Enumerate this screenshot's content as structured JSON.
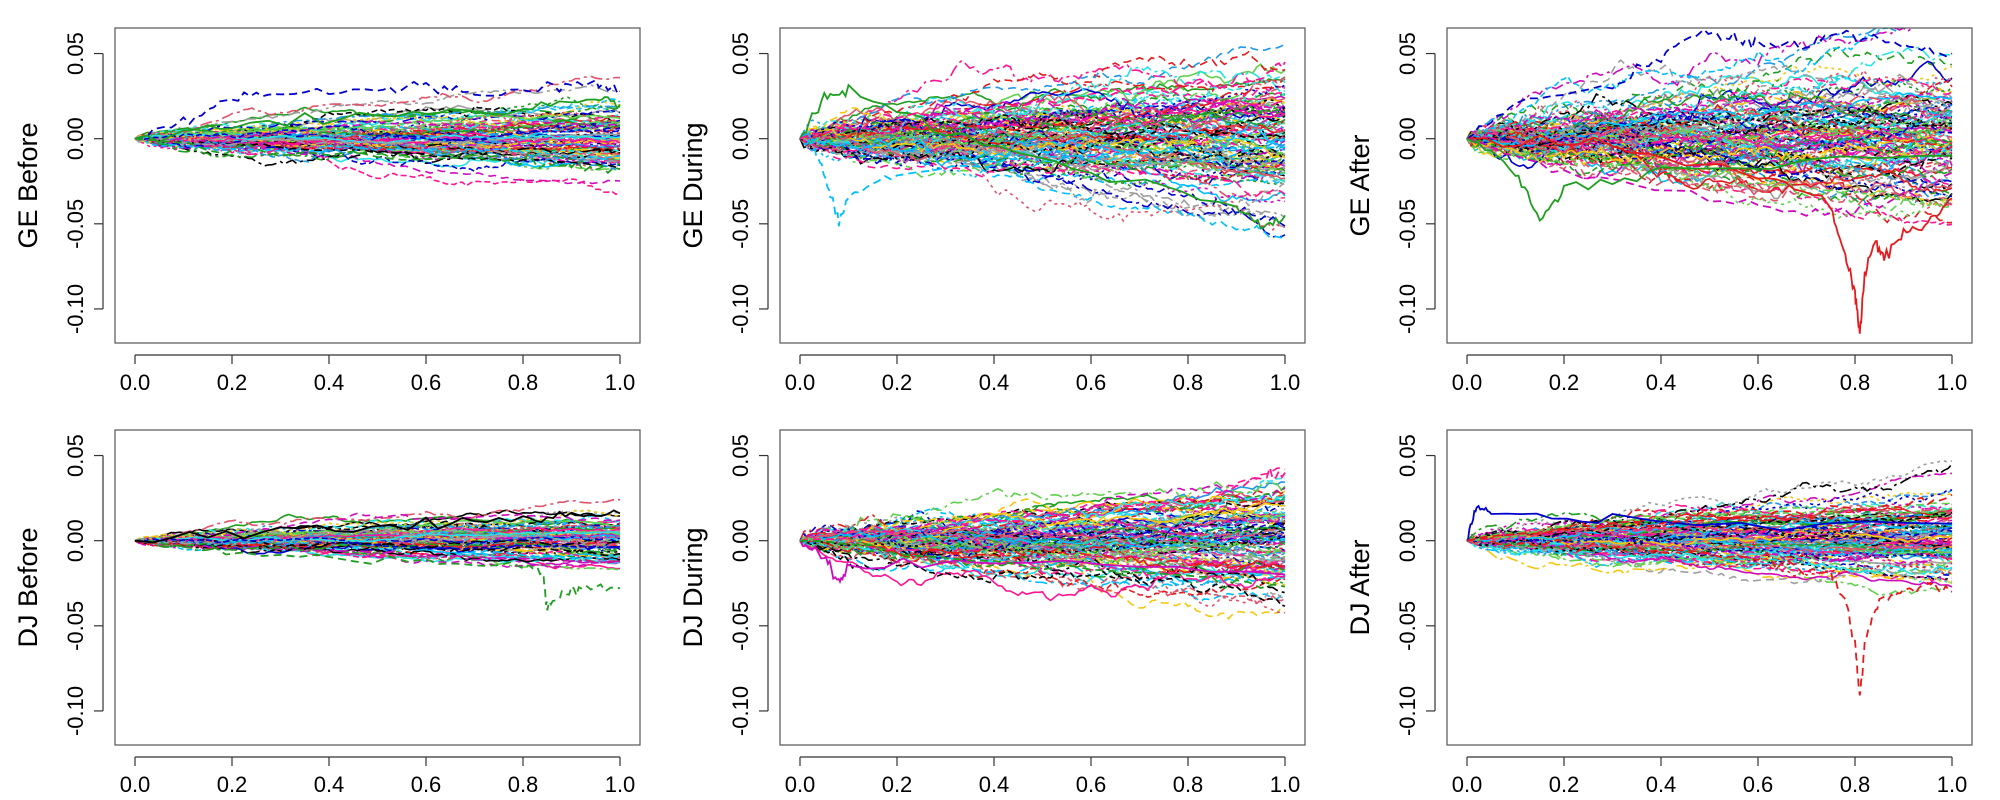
{
  "figure": {
    "description_type": "grid of 6 functional-data line plots (2 rows x 3 columns)"
  },
  "palette": [
    "#000000",
    "#DF536B",
    "#61D04F",
    "#2297E6",
    "#28E2E5",
    "#CD0BBC",
    "#F5C710",
    "#9E9E9E",
    "#0000CD",
    "#E41A1C",
    "#1F9E1F",
    "#00BFFF",
    "#FF1493"
  ],
  "chart_data": [
    {
      "type": "line",
      "ylabel": "GE Before",
      "xlim": [
        0,
        1
      ],
      "ylim": [
        -0.12,
        0.065
      ],
      "xticks": [
        "0.0",
        "0.2",
        "0.4",
        "0.6",
        "0.8",
        "1.0"
      ],
      "yticks": [
        "-0.10",
        "-0.05",
        "0.00",
        "0.05"
      ],
      "series_count": 100,
      "spread_at_end": 0.012,
      "outliers": [
        {
          "name": "upper blue dashed",
          "color": "#0000CD",
          "points": [
            [
              0,
              0
            ],
            [
              0.1,
              0.01
            ],
            [
              0.2,
              0.025
            ],
            [
              0.3,
              0.027
            ],
            [
              0.5,
              0.028
            ],
            [
              0.6,
              0.031
            ],
            [
              0.7,
              0.026
            ],
            [
              0.85,
              0.031
            ],
            [
              0.95,
              0.032
            ],
            [
              1.0,
              0.029
            ]
          ]
        },
        {
          "name": "upper green dashed",
          "color": "#1F9E1F",
          "points": [
            [
              0,
              0
            ],
            [
              0.2,
              0.01
            ],
            [
              0.5,
              0.013
            ],
            [
              0.8,
              0.017
            ],
            [
              0.95,
              0.024
            ],
            [
              1.0,
              0.02
            ]
          ]
        },
        {
          "name": "lower green dashed",
          "color": "#1F9E1F",
          "points": [
            [
              0,
              0
            ],
            [
              0.3,
              -0.008
            ],
            [
              0.7,
              -0.012
            ],
            [
              0.85,
              -0.014
            ],
            [
              0.9,
              -0.016
            ],
            [
              1.0,
              -0.018
            ]
          ]
        }
      ]
    },
    {
      "type": "line",
      "ylabel": "GE During",
      "xlim": [
        0,
        1
      ],
      "ylim": [
        -0.12,
        0.065
      ],
      "xticks": [
        "0.0",
        "0.2",
        "0.4",
        "0.6",
        "0.8",
        "1.0"
      ],
      "yticks": [
        "-0.10",
        "-0.05",
        "0.00",
        "0.05"
      ],
      "series_count": 120,
      "spread_at_end": 0.025,
      "outliers": [
        {
          "name": "cyan dip",
          "color": "#00BFFF",
          "points": [
            [
              0,
              0
            ],
            [
              0.03,
              -0.005
            ],
            [
              0.06,
              -0.03
            ],
            [
              0.08,
              -0.049
            ],
            [
              0.1,
              -0.035
            ],
            [
              0.2,
              -0.02
            ],
            [
              0.5,
              -0.01
            ],
            [
              1.0,
              -0.005
            ]
          ]
        },
        {
          "name": "green low",
          "color": "#1F9E1F",
          "points": [
            [
              0,
              0
            ],
            [
              0.05,
              0.025
            ],
            [
              0.1,
              0.028
            ],
            [
              0.3,
              0.005
            ],
            [
              0.6,
              -0.02
            ],
            [
              0.9,
              -0.04
            ],
            [
              0.95,
              -0.052
            ],
            [
              1.0,
              -0.045
            ]
          ]
        },
        {
          "name": "magenta high",
          "color": "#FF1493",
          "points": [
            [
              0,
              0
            ],
            [
              0.2,
              0.012
            ],
            [
              0.5,
              0.02
            ],
            [
              0.8,
              0.03
            ],
            [
              0.95,
              0.035
            ],
            [
              1.0,
              0.045
            ]
          ]
        }
      ]
    },
    {
      "type": "line",
      "ylabel": "GE After",
      "xlim": [
        0,
        1
      ],
      "ylim": [
        -0.12,
        0.065
      ],
      "xticks": [
        "0.0",
        "0.2",
        "0.4",
        "0.6",
        "0.8",
        "1.0"
      ],
      "yticks": [
        "-0.10",
        "-0.05",
        "0.00",
        "0.05"
      ],
      "series_count": 120,
      "spread_at_end": 0.03,
      "outliers": [
        {
          "name": "blue dashed high",
          "color": "#0000CD",
          "points": [
            [
              0,
              0
            ],
            [
              0.1,
              0.02
            ],
            [
              0.3,
              0.03
            ],
            [
              0.4,
              0.05
            ],
            [
              0.48,
              0.061
            ],
            [
              0.55,
              0.058
            ],
            [
              0.6,
              0.057
            ],
            [
              0.7,
              0.055
            ],
            [
              0.76,
              0.062
            ],
            [
              0.85,
              0.057
            ],
            [
              0.9,
              0.055
            ],
            [
              1.0,
              0.05
            ]
          ]
        },
        {
          "name": "red crash",
          "color": "#E41A1C",
          "points": [
            [
              0,
              0
            ],
            [
              0.3,
              -0.005
            ],
            [
              0.6,
              -0.02
            ],
            [
              0.75,
              -0.04
            ],
            [
              0.78,
              -0.07
            ],
            [
              0.8,
              -0.09
            ],
            [
              0.81,
              -0.115
            ],
            [
              0.82,
              -0.08
            ],
            [
              0.84,
              -0.06
            ],
            [
              0.86,
              -0.07
            ],
            [
              0.9,
              -0.055
            ],
            [
              0.95,
              -0.05
            ],
            [
              1.0,
              -0.035
            ]
          ]
        },
        {
          "name": "magenta low",
          "color": "#CD0BBC",
          "points": [
            [
              0,
              0
            ],
            [
              0.2,
              -0.02
            ],
            [
              0.5,
              -0.035
            ],
            [
              0.7,
              -0.045
            ],
            [
              0.85,
              -0.04
            ],
            [
              1.0,
              -0.02
            ]
          ]
        },
        {
          "name": "green dip",
          "color": "#1F9E1F",
          "points": [
            [
              0,
              0
            ],
            [
              0.1,
              -0.02
            ],
            [
              0.15,
              -0.048
            ],
            [
              0.2,
              -0.03
            ],
            [
              0.4,
              -0.02
            ],
            [
              1.0,
              -0.01
            ]
          ]
        }
      ]
    },
    {
      "type": "line",
      "ylabel": "DJ Before",
      "xlim": [
        0,
        1
      ],
      "ylim": [
        -0.12,
        0.065
      ],
      "xticks": [
        "0.0",
        "0.2",
        "0.4",
        "0.6",
        "0.8",
        "1.0"
      ],
      "yticks": [
        "-0.10",
        "-0.05",
        "0.00",
        "0.05"
      ],
      "series_count": 100,
      "spread_at_end": 0.01,
      "outliers": [
        {
          "name": "green drop",
          "color": "#1F9E1F",
          "points": [
            [
              0,
              0
            ],
            [
              0.3,
              -0.008
            ],
            [
              0.6,
              -0.012
            ],
            [
              0.8,
              -0.015
            ],
            [
              0.84,
              -0.018
            ],
            [
              0.85,
              -0.04
            ],
            [
              0.88,
              -0.03
            ],
            [
              0.92,
              -0.028
            ],
            [
              1.0,
              -0.028
            ]
          ]
        },
        {
          "name": "black dashed high",
          "color": "#000000",
          "points": [
            [
              0,
              0
            ],
            [
              0.3,
              0.008
            ],
            [
              0.6,
              0.01
            ],
            [
              0.8,
              0.012
            ],
            [
              0.9,
              0.015
            ],
            [
              1.0,
              0.016
            ]
          ]
        }
      ]
    },
    {
      "type": "line",
      "ylabel": "DJ During",
      "xlim": [
        0,
        1
      ],
      "ylim": [
        -0.12,
        0.065
      ],
      "xticks": [
        "0.0",
        "0.2",
        "0.4",
        "0.6",
        "0.8",
        "1.0"
      ],
      "yticks": [
        "-0.10",
        "-0.05",
        "0.00",
        "0.05"
      ],
      "series_count": 120,
      "spread_at_end": 0.02,
      "outliers": [
        {
          "name": "magenta high",
          "color": "#FF1493",
          "points": [
            [
              0,
              0
            ],
            [
              0.3,
              0.01
            ],
            [
              0.6,
              0.018
            ],
            [
              0.85,
              0.025
            ],
            [
              0.95,
              0.038
            ],
            [
              1.0,
              0.04
            ]
          ]
        },
        {
          "name": "magenta dip",
          "color": "#CD0BBC",
          "points": [
            [
              0,
              0
            ],
            [
              0.05,
              -0.01
            ],
            [
              0.08,
              -0.025
            ],
            [
              0.1,
              -0.015
            ],
            [
              0.4,
              -0.012
            ],
            [
              1.0,
              -0.02
            ]
          ]
        },
        {
          "name": "green low",
          "color": "#1F9E1F",
          "points": [
            [
              0,
              0
            ],
            [
              0.4,
              -0.012
            ],
            [
              0.8,
              -0.02
            ],
            [
              1.0,
              -0.027
            ]
          ]
        }
      ]
    },
    {
      "type": "line",
      "ylabel": "DJ After",
      "xlim": [
        0,
        1
      ],
      "ylim": [
        -0.12,
        0.065
      ],
      "xticks": [
        "0.0",
        "0.2",
        "0.4",
        "0.6",
        "0.8",
        "1.0"
      ],
      "yticks": [
        "-0.10",
        "-0.05",
        "0.00",
        "0.05"
      ],
      "series_count": 120,
      "spread_at_end": 0.015,
      "outliers": [
        {
          "name": "red crash",
          "color": "#E41A1C",
          "points": [
            [
              0,
              0
            ],
            [
              0.3,
              -0.003
            ],
            [
              0.6,
              -0.01
            ],
            [
              0.75,
              -0.02
            ],
            [
              0.78,
              -0.035
            ],
            [
              0.8,
              -0.06
            ],
            [
              0.81,
              -0.092
            ],
            [
              0.82,
              -0.06
            ],
            [
              0.85,
              -0.035
            ],
            [
              0.9,
              -0.03
            ],
            [
              0.95,
              -0.025
            ],
            [
              1.0,
              -0.03
            ]
          ]
        },
        {
          "name": "blue dotted high",
          "color": "#0000CD",
          "points": [
            [
              0,
              0
            ],
            [
              0.02,
              0.02
            ],
            [
              0.05,
              0.015
            ],
            [
              0.3,
              0.012
            ],
            [
              1.0,
              0.01
            ]
          ]
        },
        {
          "name": "red dotted high",
          "color": "#E41A1C",
          "points": [
            [
              0,
              0
            ],
            [
              0.3,
              0.008
            ],
            [
              0.6,
              0.015
            ],
            [
              0.9,
              0.022
            ],
            [
              1.0,
              0.027
            ]
          ]
        }
      ]
    }
  ]
}
